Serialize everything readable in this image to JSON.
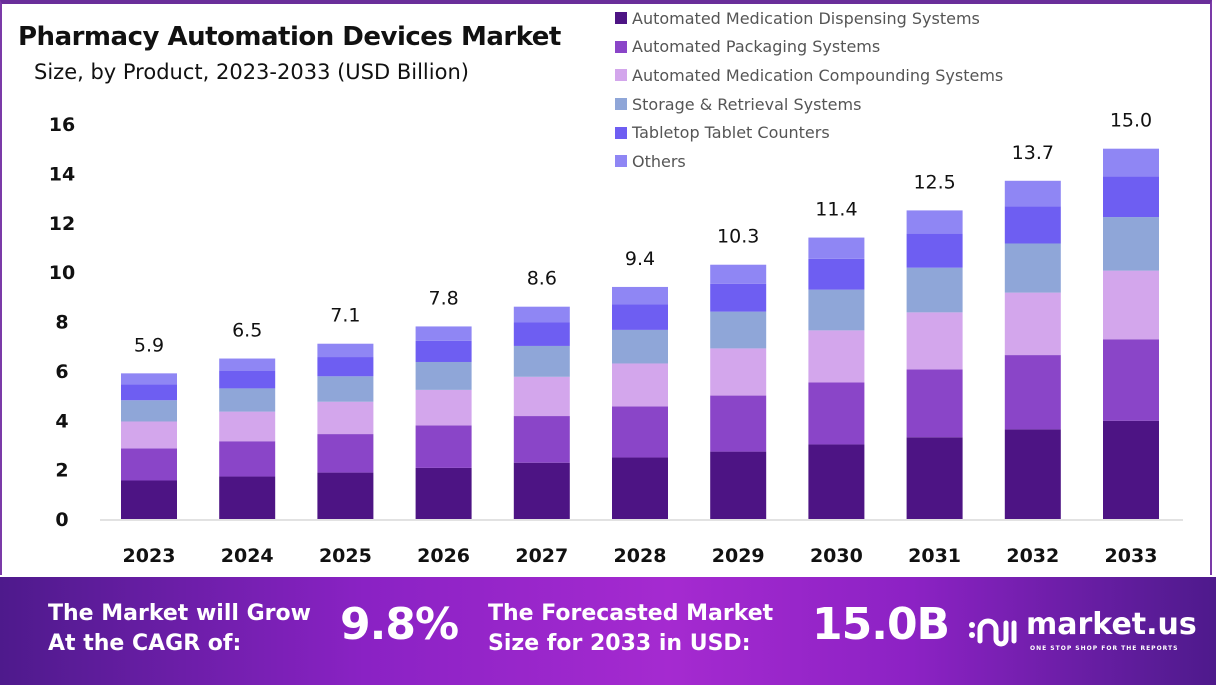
{
  "header": {
    "title": "Pharmacy Automation Devices Market",
    "subtitle": "Size, by Product, 2023-2033 (USD Billion)"
  },
  "banner": {
    "cagr_line1": "The Market will Grow",
    "cagr_line2": "At the CAGR of:",
    "cagr_value": "9.8%",
    "forecast_line1": "The Forecasted Market",
    "forecast_line2": "Size for 2033 in USD:",
    "forecast_value": "15.0B",
    "logo_name": "market.us",
    "logo_tagline": "ONE STOP SHOP FOR THE REPORTS"
  },
  "chart_data": {
    "type": "bar",
    "stacked": true,
    "title": "Pharmacy Automation Devices Market",
    "subtitle": "Size, by Product, 2023-2033 (USD Billion)",
    "xlabel": "",
    "ylabel": "",
    "ylim": [
      0,
      16
    ],
    "yticks": [
      0,
      2,
      4,
      6,
      8,
      10,
      12,
      14,
      16
    ],
    "grid": false,
    "legend_position": "top-right",
    "categories": [
      "2023",
      "2024",
      "2025",
      "2026",
      "2027",
      "2028",
      "2029",
      "2030",
      "2031",
      "2032",
      "2033"
    ],
    "totals": [
      5.9,
      6.5,
      7.1,
      7.8,
      8.6,
      9.4,
      10.3,
      11.4,
      12.5,
      13.7,
      15.0
    ],
    "total_labels": [
      "5.9",
      "6.5",
      "7.1",
      "7.8",
      "8.6",
      "9.4",
      "10.3",
      "11.4",
      "12.5",
      "13.7",
      "15.0"
    ],
    "series": [
      {
        "name": "Automated Medication Dispensing Systems",
        "color": "#4d1484",
        "values": [
          1.56,
          1.72,
          1.88,
          2.07,
          2.28,
          2.49,
          2.73,
          3.02,
          3.31,
          3.63,
          3.98
        ]
      },
      {
        "name": "Automated Packaging Systems",
        "color": "#8a45c8",
        "values": [
          1.3,
          1.43,
          1.56,
          1.72,
          1.89,
          2.07,
          2.27,
          2.51,
          2.75,
          3.01,
          3.3
        ]
      },
      {
        "name": "Automated Medication Compounding Systems",
        "color": "#d3a6ec",
        "values": [
          1.09,
          1.2,
          1.31,
          1.44,
          1.59,
          1.74,
          1.91,
          2.11,
          2.31,
          2.53,
          2.78
        ]
      },
      {
        "name": "Storage & Retrieval Systems",
        "color": "#8fa6d8",
        "values": [
          0.86,
          0.94,
          1.03,
          1.13,
          1.25,
          1.36,
          1.49,
          1.65,
          1.81,
          1.99,
          2.17
        ]
      },
      {
        "name": "Tabletop Tablet Counters",
        "color": "#6e5ef2",
        "values": [
          0.65,
          0.72,
          0.78,
          0.86,
          0.95,
          1.03,
          1.13,
          1.25,
          1.38,
          1.51,
          1.65
        ]
      },
      {
        "name": "Others",
        "color": "#8f86f4",
        "values": [
          0.44,
          0.49,
          0.54,
          0.58,
          0.64,
          0.71,
          0.77,
          0.86,
          0.94,
          1.03,
          1.12
        ]
      }
    ]
  }
}
